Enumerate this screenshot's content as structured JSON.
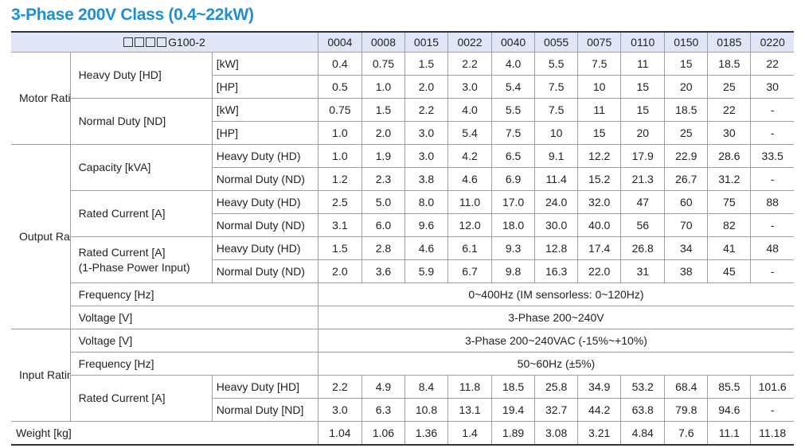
{
  "title": "3-Phase 200V Class (0.4~22kW)",
  "model_suffix": "G100-2",
  "models": [
    "0004",
    "0008",
    "0015",
    "0022",
    "0040",
    "0055",
    "0075",
    "0110",
    "0150",
    "0185",
    "0220"
  ],
  "motor_rating": {
    "label": "Motor Rating",
    "heavy_duty": {
      "label": "Heavy Duty [HD]",
      "kw": {
        "unit": "[kW]",
        "values": [
          "0.4",
          "0.75",
          "1.5",
          "2.2",
          "4.0",
          "5.5",
          "7.5",
          "11",
          "15",
          "18.5",
          "22"
        ]
      },
      "hp": {
        "unit": "[HP]",
        "values": [
          "0.5",
          "1.0",
          "2.0",
          "3.0",
          "5.4",
          "7.5",
          "10",
          "15",
          "20",
          "25",
          "30"
        ]
      }
    },
    "normal_duty": {
      "label": "Normal Duty [ND]",
      "kw": {
        "unit": "[kW]",
        "values": [
          "0.75",
          "1.5",
          "2.2",
          "4.0",
          "5.5",
          "7.5",
          "11",
          "15",
          "18.5",
          "22",
          "-"
        ]
      },
      "hp": {
        "unit": "[HP]",
        "values": [
          "1.0",
          "2.0",
          "3.0",
          "5.4",
          "7.5",
          "10",
          "15",
          "20",
          "25",
          "30",
          "-"
        ]
      }
    }
  },
  "output_rating": {
    "label": "Output Rating",
    "capacity": {
      "label": "Capacity [kVA]",
      "hd": {
        "label": "Heavy Duty (HD)",
        "values": [
          "1.0",
          "1.9",
          "3.0",
          "4.2",
          "6.5",
          "9.1",
          "12.2",
          "17.9",
          "22.9",
          "28.6",
          "33.5"
        ]
      },
      "nd": {
        "label": "Normal Duty (ND)",
        "values": [
          "1.2",
          "2.3",
          "3.8",
          "4.6",
          "6.9",
          "11.4",
          "15.2",
          "21.3",
          "26.7",
          "31.2",
          "-"
        ]
      }
    },
    "rated_current": {
      "label": "Rated Current [A]",
      "hd": {
        "label": "Heavy Duty (HD)",
        "values": [
          "2.5",
          "5.0",
          "8.0",
          "11.0",
          "17.0",
          "24.0",
          "32.0",
          "47",
          "60",
          "75",
          "88"
        ]
      },
      "nd": {
        "label": "Normal Duty (ND)",
        "values": [
          "3.1",
          "6.0",
          "9.6",
          "12.0",
          "18.0",
          "30.0",
          "40.0",
          "56",
          "70",
          "82",
          "-"
        ]
      }
    },
    "rated_current_1ph": {
      "label_line1": "Rated Current [A]",
      "label_line2": "(1-Phase Power Input)",
      "hd": {
        "label": "Heavy Duty (HD)",
        "values": [
          "1.5",
          "2.8",
          "4.6",
          "6.1",
          "9.3",
          "12.8",
          "17.4",
          "26.8",
          "34",
          "41",
          "48"
        ]
      },
      "nd": {
        "label": "Normal Duty (ND)",
        "values": [
          "2.0",
          "3.6",
          "5.9",
          "6.7",
          "9.8",
          "16.3",
          "22.0",
          "31",
          "38",
          "45",
          "-"
        ]
      }
    },
    "frequency": {
      "label": "Frequency [Hz]",
      "value": "0~400Hz (IM sensorless: 0~120Hz)"
    },
    "voltage": {
      "label": "Voltage [V]",
      "value": "3-Phase 200~240V"
    }
  },
  "input_rating": {
    "label": "Input Rating",
    "voltage": {
      "label": "Voltage [V]",
      "value": "3-Phase 200~240VAC (-15%~+10%)"
    },
    "frequency": {
      "label": "Frequency [Hz]",
      "value": "50~60Hz (±5%)"
    },
    "rated_current": {
      "label": "Rated Current [A]",
      "hd": {
        "label": "Heavy Duty [HD]",
        "values": [
          "2.2",
          "4.9",
          "8.4",
          "11.8",
          "18.5",
          "25.8",
          "34.9",
          "53.2",
          "68.4",
          "85.5",
          "101.6"
        ]
      },
      "nd": {
        "label": "Normal Duty [ND]",
        "values": [
          "3.0",
          "6.3",
          "10.8",
          "13.1",
          "19.4",
          "32.7",
          "44.2",
          "63.8",
          "79.8",
          "94.6",
          "-"
        ]
      }
    }
  },
  "weight": {
    "label": "Weight [kg]",
    "values": [
      "1.04",
      "1.06",
      "1.36",
      "1.4",
      "1.89",
      "3.08",
      "3.21",
      "4.84",
      "7.6",
      "11.1",
      "11.18"
    ]
  }
}
